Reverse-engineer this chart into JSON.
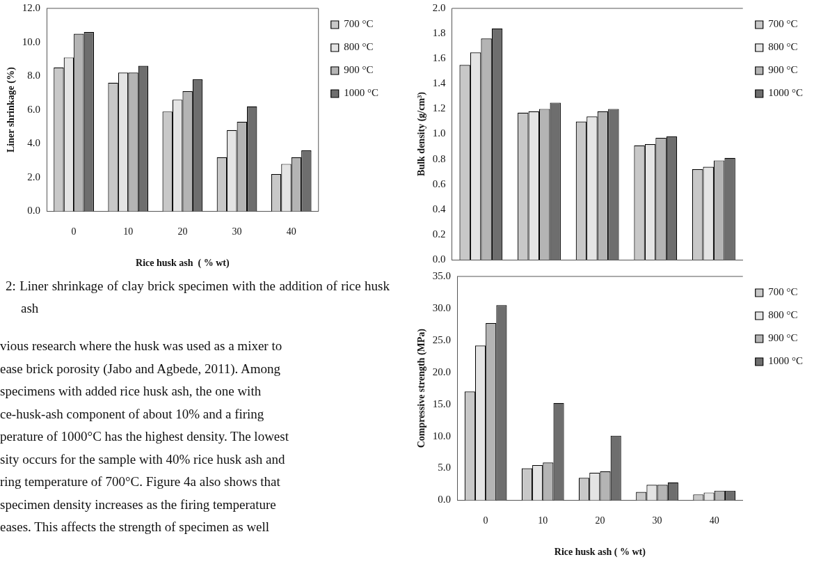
{
  "chart_data": [
    {
      "type": "bar",
      "xlabel": "Rice husk ash  ( % wt)",
      "ylabel": "Liner shrinkage (%)",
      "categories": [
        "0",
        "10",
        "20",
        "30",
        "40"
      ],
      "series": [
        {
          "name": "700 °C",
          "color": "#c8c8c8",
          "values": [
            8.5,
            7.6,
            5.9,
            3.2,
            2.2
          ]
        },
        {
          "name": "800 °C",
          "color": "#e4e4e4",
          "values": [
            9.1,
            8.2,
            6.6,
            4.8,
            2.8
          ]
        },
        {
          "name": "900 °C",
          "color": "#b4b4b4",
          "values": [
            10.5,
            8.2,
            7.1,
            5.3,
            3.2
          ]
        },
        {
          "name": "1000 °C",
          "color": "#6e6e6e",
          "values": [
            10.6,
            8.6,
            7.8,
            6.2,
            3.6
          ]
        }
      ],
      "ylim": [
        0,
        12
      ],
      "yticks": [
        {
          "value": 0,
          "label": "0.0"
        },
        {
          "value": 2,
          "label": "2.0"
        },
        {
          "value": 4,
          "label": "4.0"
        },
        {
          "value": 6,
          "label": "6.0"
        },
        {
          "value": 8,
          "label": "8.0"
        },
        {
          "value": 10,
          "label": "10.0"
        },
        {
          "value": 12,
          "label": "12.0"
        }
      ],
      "legend": "top right",
      "annotations": [
        "2: Liner shrinkage of clay brick specimen with the addition of rice husk ash",
        "vious research where the husk was used as a mixer to",
        "ease brick porosity (Jabo and Agbede, 2011). Among",
        "specimens with added rice husk ash, the one with",
        "ce-husk-ash component of about 10% and a firing",
        "perature of 1000°C has the highest density. The lowest",
        "sity occurs for the sample with 40% rice husk ash and",
        "ring temperature of 700°C. Figure 4a also shows that",
        "specimen density increases as the firing temperature",
        "eases. This affects the strength of specimen as well"
      ]
    },
    {
      "type": "bar",
      "ylabel": "Bulk density (g/cm³)",
      "categories": [
        "0",
        "10",
        "20",
        "30",
        "40"
      ],
      "tick_labels": "y",
      "series": [
        {
          "name": "700 °C",
          "color": "#c8c8c8",
          "values": [
            1.55,
            1.17,
            1.1,
            0.91,
            0.72
          ]
        },
        {
          "name": "800 °C",
          "color": "#e4e4e4",
          "values": [
            1.65,
            1.18,
            1.14,
            0.92,
            0.74
          ]
        },
        {
          "name": "900 °C",
          "color": "#b4b4b4",
          "values": [
            1.76,
            1.2,
            1.18,
            0.97,
            0.79
          ]
        },
        {
          "name": "1000 °C",
          "color": "#6e6e6e",
          "values": [
            1.84,
            1.25,
            1.2,
            0.98,
            0.81
          ]
        }
      ],
      "ylim": [
        0,
        2
      ],
      "yticks": [
        {
          "value": 0,
          "label": "0.0"
        },
        0.2,
        0.4,
        0.6,
        0.8,
        {
          "value": 1,
          "label": "1.0"
        },
        1.2,
        1.4,
        1.6,
        1.8,
        {
          "value": 2,
          "label": "2.0"
        }
      ],
      "legend": "top right"
    },
    {
      "type": "bar",
      "xlabel": "Rice husk ash ( % wt)",
      "ylabel": "Compressive strength (MPa)",
      "categories": [
        "0",
        "10",
        "20",
        "30",
        "40"
      ],
      "series": [
        {
          "name": "700 °C",
          "color": "#c8c8c8",
          "values": [
            17.0,
            5.0,
            3.5,
            1.3,
            0.9
          ]
        },
        {
          "name": "800 °C",
          "color": "#e4e4e4",
          "values": [
            24.2,
            5.5,
            4.3,
            2.4,
            1.2
          ]
        },
        {
          "name": "900 °C",
          "color": "#b4b4b4",
          "values": [
            27.7,
            5.9,
            4.5,
            2.4,
            1.5
          ]
        },
        {
          "name": "1000 °C",
          "color": "#6e6e6e",
          "values": [
            30.5,
            15.2,
            10.1,
            2.8,
            1.5
          ]
        }
      ],
      "ylim": [
        0,
        35
      ],
      "yticks": [
        {
          "value": 0,
          "label": "0.0"
        },
        {
          "value": 5,
          "label": "5.0"
        },
        {
          "value": 10,
          "label": "10.0"
        },
        {
          "value": 15,
          "label": "15.0"
        },
        {
          "value": 20,
          "label": "20.0"
        },
        {
          "value": 25,
          "label": "25.0"
        },
        {
          "value": 30,
          "label": "30.0"
        },
        {
          "value": 35,
          "label": "35.0"
        }
      ],
      "legend": "top right"
    }
  ]
}
